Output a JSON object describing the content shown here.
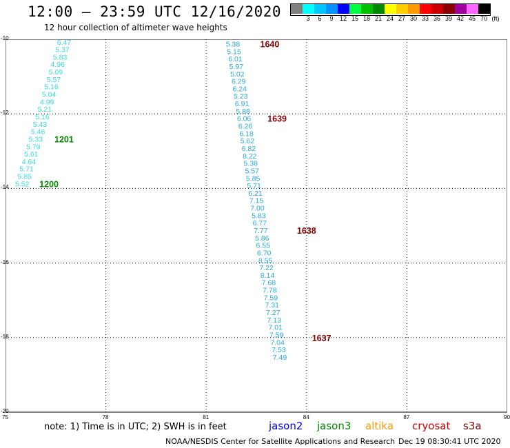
{
  "header": {
    "title": "12:00 – 23:59 UTC 12/16/2020",
    "subtitle": "12 hour collection of altimeter wave heights"
  },
  "legend": {
    "unit": "(ft)",
    "items": [
      {
        "color": "#808080",
        "label": ""
      },
      {
        "color": "#00ffff",
        "label": "3"
      },
      {
        "color": "#00c8ff",
        "label": "6"
      },
      {
        "color": "#0090ff",
        "label": "9"
      },
      {
        "color": "#0000ff",
        "label": "12"
      },
      {
        "color": "#00ff40",
        "label": "15"
      },
      {
        "color": "#00c000",
        "label": "18"
      },
      {
        "color": "#008800",
        "label": "21"
      },
      {
        "color": "#ffff00",
        "label": "24"
      },
      {
        "color": "#ffcc00",
        "label": "27"
      },
      {
        "color": "#ff9900",
        "label": "30"
      },
      {
        "color": "#ff0000",
        "label": "33"
      },
      {
        "color": "#cc0000",
        "label": "36"
      },
      {
        "color": "#880000",
        "label": "39"
      },
      {
        "color": "#a000a0",
        "label": "42"
      },
      {
        "color": "#ff66ff",
        "label": "45"
      },
      {
        "color": "#000000",
        "label": "70"
      }
    ]
  },
  "map": {
    "lon_range": [
      75,
      90
    ],
    "lat_range": [
      -10,
      -20
    ],
    "lon_ticks": [
      "75",
      "78",
      "81",
      "84",
      "87",
      "90"
    ],
    "lat_ticks": [
      "-10",
      "-12",
      "-14",
      "-16",
      "-18",
      "-20"
    ],
    "track_west": {
      "color": "#33dddd",
      "points": [
        {
          "lon": 76.75,
          "lat": -10.07,
          "v": "6.47"
        },
        {
          "lon": 76.7,
          "lat": -10.27,
          "v": "5.37"
        },
        {
          "lon": 76.63,
          "lat": -10.47,
          "v": "5.83"
        },
        {
          "lon": 76.56,
          "lat": -10.67,
          "v": "4.96"
        },
        {
          "lon": 76.5,
          "lat": -10.87,
          "v": "5.09"
        },
        {
          "lon": 76.44,
          "lat": -11.07,
          "v": "5.57"
        },
        {
          "lon": 76.37,
          "lat": -11.27,
          "v": "5.16"
        },
        {
          "lon": 76.3,
          "lat": -11.47,
          "v": "5.04"
        },
        {
          "lon": 76.24,
          "lat": -11.67,
          "v": "4.99"
        },
        {
          "lon": 76.17,
          "lat": -11.87,
          "v": "5.21"
        },
        {
          "lon": 76.1,
          "lat": -12.07,
          "v": "5.16"
        },
        {
          "lon": 76.03,
          "lat": -12.27,
          "v": "5.43"
        },
        {
          "lon": 75.97,
          "lat": -12.47,
          "v": "5.46"
        },
        {
          "lon": 75.9,
          "lat": -12.67,
          "v": "5.33"
        },
        {
          "lon": 75.83,
          "lat": -12.87,
          "v": "5.79"
        },
        {
          "lon": 75.77,
          "lat": -13.07,
          "v": "5.61"
        },
        {
          "lon": 75.7,
          "lat": -13.27,
          "v": "4.64"
        },
        {
          "lon": 75.63,
          "lat": -13.47,
          "v": "5.71"
        },
        {
          "lon": 75.57,
          "lat": -13.67,
          "v": "5.85"
        },
        {
          "lon": 75.5,
          "lat": -13.87,
          "v": "5.52"
        }
      ],
      "times": [
        {
          "lon": 76.75,
          "lat": -12.67,
          "label": "1201",
          "color": "#008800"
        },
        {
          "lon": 76.3,
          "lat": -13.87,
          "label": "1200",
          "color": "#008800"
        }
      ]
    },
    "track_east": {
      "color": "#22aadd",
      "points": [
        {
          "lon": 81.8,
          "lat": -10.12,
          "v": "5.38"
        },
        {
          "lon": 81.83,
          "lat": -10.32,
          "v": "5.15"
        },
        {
          "lon": 81.87,
          "lat": -10.52,
          "v": "6.01"
        },
        {
          "lon": 81.9,
          "lat": -10.72,
          "v": "5.97"
        },
        {
          "lon": 81.93,
          "lat": -10.92,
          "v": "5.02"
        },
        {
          "lon": 81.97,
          "lat": -11.12,
          "v": "6.29"
        },
        {
          "lon": 82.0,
          "lat": -11.32,
          "v": "6.24"
        },
        {
          "lon": 82.03,
          "lat": -11.52,
          "v": "5.23"
        },
        {
          "lon": 82.07,
          "lat": -11.72,
          "v": "6.91"
        },
        {
          "lon": 82.1,
          "lat": -11.92,
          "v": "5.88"
        },
        {
          "lon": 82.13,
          "lat": -12.12,
          "v": "6.06"
        },
        {
          "lon": 82.17,
          "lat": -12.32,
          "v": "6.26"
        },
        {
          "lon": 82.2,
          "lat": -12.52,
          "v": "6.18"
        },
        {
          "lon": 82.23,
          "lat": -12.72,
          "v": "5.62"
        },
        {
          "lon": 82.27,
          "lat": -12.92,
          "v": "6.82"
        },
        {
          "lon": 82.3,
          "lat": -13.12,
          "v": "8.22"
        },
        {
          "lon": 82.33,
          "lat": -13.32,
          "v": "5.38"
        },
        {
          "lon": 82.37,
          "lat": -13.52,
          "v": "5.57"
        },
        {
          "lon": 82.4,
          "lat": -13.72,
          "v": "5.85"
        },
        {
          "lon": 82.43,
          "lat": -13.92,
          "v": "5.71"
        },
        {
          "lon": 82.47,
          "lat": -14.12,
          "v": "6.21"
        },
        {
          "lon": 82.5,
          "lat": -14.32,
          "v": "7.15"
        },
        {
          "lon": 82.53,
          "lat": -14.52,
          "v": "7.00"
        },
        {
          "lon": 82.57,
          "lat": -14.72,
          "v": "5.83"
        },
        {
          "lon": 82.6,
          "lat": -14.92,
          "v": "6.77"
        },
        {
          "lon": 82.63,
          "lat": -15.12,
          "v": "7.77"
        },
        {
          "lon": 82.67,
          "lat": -15.32,
          "v": "5.86"
        },
        {
          "lon": 82.7,
          "lat": -15.52,
          "v": "6.55"
        },
        {
          "lon": 82.73,
          "lat": -15.72,
          "v": "6.70"
        },
        {
          "lon": 82.77,
          "lat": -15.92,
          "v": "8.55"
        },
        {
          "lon": 82.8,
          "lat": -16.12,
          "v": "7.22"
        },
        {
          "lon": 82.83,
          "lat": -16.32,
          "v": "8.14"
        },
        {
          "lon": 82.87,
          "lat": -16.52,
          "v": "7.68"
        },
        {
          "lon": 82.9,
          "lat": -16.72,
          "v": "7.78"
        },
        {
          "lon": 82.93,
          "lat": -16.92,
          "v": "7.59"
        },
        {
          "lon": 82.97,
          "lat": -17.12,
          "v": "7.31"
        },
        {
          "lon": 83.0,
          "lat": -17.32,
          "v": "7.27"
        },
        {
          "lon": 83.03,
          "lat": -17.52,
          "v": "7.13"
        },
        {
          "lon": 83.07,
          "lat": -17.72,
          "v": "7.01"
        },
        {
          "lon": 83.1,
          "lat": -17.92,
          "v": "7.59"
        },
        {
          "lon": 83.13,
          "lat": -18.12,
          "v": "7.04"
        },
        {
          "lon": 83.17,
          "lat": -18.32,
          "v": "7.53"
        },
        {
          "lon": 83.2,
          "lat": -18.52,
          "v": "7.49"
        }
      ],
      "times": [
        {
          "lon": 82.9,
          "lat": -10.12,
          "label": "1640",
          "color": "#880000"
        },
        {
          "lon": 83.12,
          "lat": -12.12,
          "label": "1639",
          "color": "#880000"
        },
        {
          "lon": 84.0,
          "lat": -15.12,
          "label": "1638",
          "color": "#880000"
        },
        {
          "lon": 84.45,
          "lat": -18.0,
          "label": "1637",
          "color": "#880000"
        }
      ]
    }
  },
  "footer": {
    "note": "note: 1) Time is in UTC; 2) SWH is in feet",
    "satellites": [
      {
        "name": "jason2",
        "color": "#0000ff"
      },
      {
        "name": "jason3",
        "color": "#008800"
      },
      {
        "name": "altika",
        "color": "#ff9900"
      },
      {
        "name": "cryosat",
        "color": "#cc0000"
      },
      {
        "name": "s3a",
        "color": "#880000"
      }
    ],
    "credit": "NOAA/NESDIS Center for Satellite Applications and Research",
    "timestamp": "Dec 19 08:30:41 UTC 2020"
  }
}
